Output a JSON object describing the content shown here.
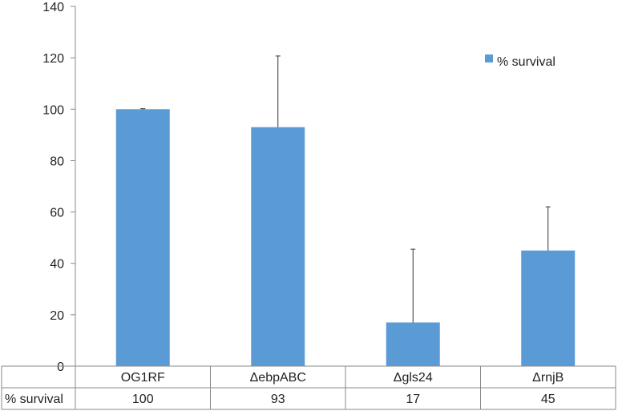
{
  "chart_data": {
    "type": "bar",
    "title": "",
    "xlabel": "",
    "ylabel": "",
    "ylim": [
      0,
      140
    ],
    "yticks": [
      0,
      20,
      40,
      60,
      80,
      100,
      120,
      140
    ],
    "grid": false,
    "legend_position": "top-right",
    "categories": [
      "OG1RF",
      "ΔebpABC",
      "Δgls24",
      "ΔrnjB"
    ],
    "series": [
      {
        "name": "% survival",
        "values": [
          100,
          93,
          17,
          45
        ],
        "error_upper": [
          0.2,
          27.7,
          28.5,
          17
        ],
        "color": "#5b9bd5"
      }
    ],
    "data_table": {
      "row_label": "% survival",
      "values": [
        "100",
        "93",
        "17",
        "45"
      ]
    }
  }
}
